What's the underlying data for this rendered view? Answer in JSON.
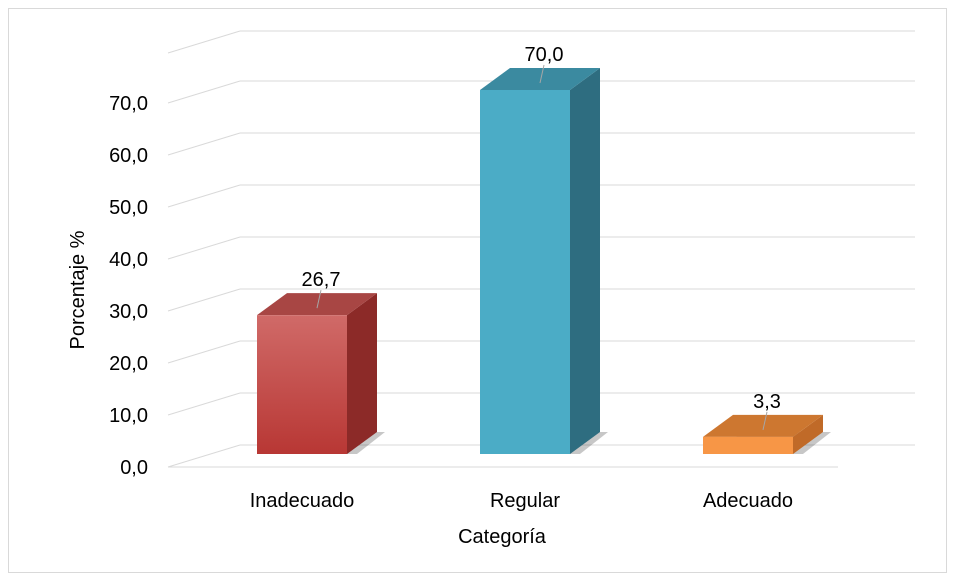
{
  "chart_data": {
    "type": "bar",
    "title": "",
    "xlabel": "Categoría",
    "ylabel": "Porcentaje %",
    "categories": [
      "Inadecuado",
      "Regular",
      "Adecuado"
    ],
    "values": [
      26.7,
      70.0,
      3.3
    ],
    "value_labels": [
      "26,7",
      "70,0",
      "3,3"
    ],
    "ylim": [
      0,
      70
    ],
    "yticks": [
      0,
      10,
      20,
      30,
      40,
      50,
      60,
      70
    ],
    "ytick_labels": [
      "0,0",
      "10,0",
      "20,0",
      "30,0",
      "40,0",
      "50,0",
      "60,0",
      "70,0"
    ],
    "grid": true,
    "style": "3d-bar",
    "colors": [
      "#c0403d",
      "#4bacc6",
      "#f79646"
    ],
    "side_colors": [
      "#8c2a28",
      "#2e6d80",
      "#c06a28"
    ],
    "top_colors": [
      "#a84644",
      "#3b8aa0",
      "#cd7730"
    ]
  }
}
